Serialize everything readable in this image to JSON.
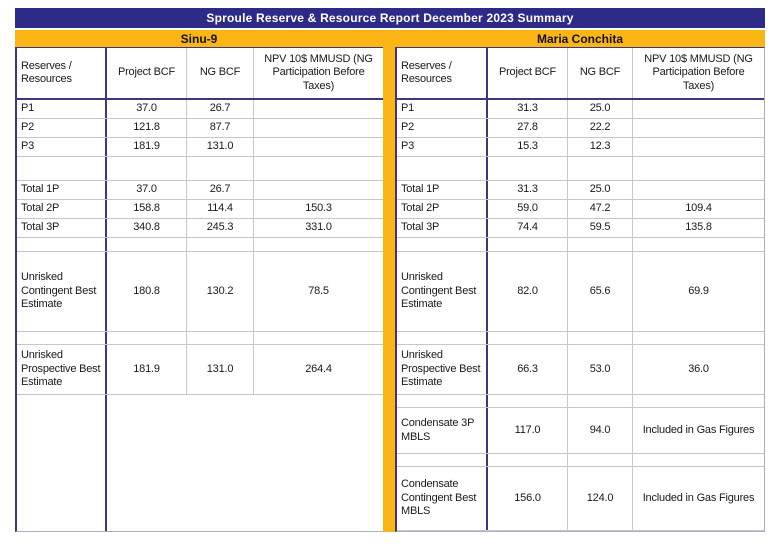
{
  "title": "Sproule Reserve & Resource Report December 2023 Summary",
  "colors": {
    "header_navy": "#2d2b87",
    "band_gold": "#fbb615",
    "grid_dark": "#3b3880",
    "grid_light": "#c6c4d6",
    "text": "#1a1a1a"
  },
  "tables": [
    {
      "field": "Sinu-9",
      "headers": {
        "label": "Reserves / Resources",
        "col1": "Project BCF",
        "col2": "NG BCF",
        "col3": "NPV 10$ MMUSD (NG Participation Before Taxes)"
      },
      "rows": [
        {
          "label": "P1",
          "cells": [
            "37.0",
            "26.7",
            ""
          ]
        },
        {
          "label": "P2",
          "cells": [
            "121.8",
            "87.7",
            ""
          ]
        },
        {
          "label": "P3",
          "cells": [
            "181.9",
            "131.0",
            ""
          ]
        },
        {
          "label": "",
          "cells": [
            "",
            "",
            ""
          ]
        },
        {
          "label": "Total 1P",
          "cells": [
            "37.0",
            "26.7",
            ""
          ]
        },
        {
          "label": "Total 2P",
          "cells": [
            "158.8",
            "114.4",
            "150.3"
          ]
        },
        {
          "label": "Total 3P",
          "cells": [
            "340.8",
            "245.3",
            "331.0"
          ]
        },
        {
          "label": "",
          "cells": [
            "",
            "",
            ""
          ]
        },
        {
          "label": "Unrisked Contingent Best Estimate",
          "cells": [
            "180.8",
            "130.2",
            "78.5"
          ]
        },
        {
          "label": "",
          "cells": [
            "",
            "",
            ""
          ]
        },
        {
          "label": "Unrisked Prospective Best Estimate",
          "cells": [
            "181.9",
            "131.0",
            "264.4"
          ]
        }
      ]
    },
    {
      "field": "Maria Conchita",
      "headers": {
        "label": "Reserves / Resources",
        "col1": "Project BCF",
        "col2": "NG BCF",
        "col3": "NPV 10$ MMUSD (NG Participation Before Taxes)"
      },
      "rows": [
        {
          "label": "P1",
          "cells": [
            "31.3",
            "25.0",
            ""
          ]
        },
        {
          "label": "P2",
          "cells": [
            "27.8",
            "22.2",
            ""
          ]
        },
        {
          "label": "P3",
          "cells": [
            "15.3",
            "12.3",
            ""
          ]
        },
        {
          "label": "",
          "cells": [
            "",
            "",
            ""
          ]
        },
        {
          "label": "Total 1P",
          "cells": [
            "31.3",
            "25.0",
            ""
          ]
        },
        {
          "label": "Total 2P",
          "cells": [
            "59.0",
            "47.2",
            "109.4"
          ]
        },
        {
          "label": "Total 3P",
          "cells": [
            "74.4",
            "59.5",
            "135.8"
          ]
        },
        {
          "label": "",
          "cells": [
            "",
            "",
            ""
          ]
        },
        {
          "label": "Unrisked Contingent Best Estimate",
          "cells": [
            "82.0",
            "65.6",
            "69.9"
          ]
        },
        {
          "label": "",
          "cells": [
            "",
            "",
            ""
          ]
        },
        {
          "label": "Unrisked Prospective Best Estimate",
          "cells": [
            "66.3",
            "53.0",
            "36.0"
          ]
        },
        {
          "label": "",
          "cells": [
            "",
            "",
            ""
          ]
        },
        {
          "label": "Condensate 3P MBLS",
          "cells": [
            "117.0",
            "94.0",
            "Included in Gas Figures"
          ]
        },
        {
          "label": "",
          "cells": [
            "",
            "",
            ""
          ]
        },
        {
          "label": "Condensate Contingent Best MBLS",
          "cells": [
            "156.0",
            "124.0",
            "Included in Gas Figures"
          ]
        }
      ]
    }
  ]
}
